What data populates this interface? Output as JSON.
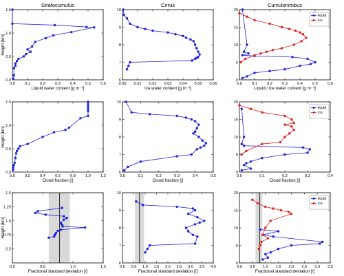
{
  "chart_data": [
    {
      "type": "line",
      "title": "Stratocumulus",
      "xlabel": "Liquid water content [g m⁻³]",
      "ylabel": "Height [km]",
      "xlim": [
        0,
        0.6
      ],
      "ylim": [
        0,
        1.5
      ],
      "xticks": [
        "0.0",
        "0.1",
        "0.2",
        "0.3",
        "0.4",
        "0.5",
        "0.6"
      ],
      "yticks": [
        "0.0",
        "0.5",
        "1.0",
        "1.5"
      ],
      "grid": false,
      "series": [
        {
          "color": "#1f1fe0",
          "x": [
            0,
            0,
            0.28,
            0.49,
            0.54,
            0.39,
            0.27,
            0.22,
            0.15,
            0.13,
            0.1,
            0.12,
            0.09,
            0.075,
            0.04,
            0.03,
            0.02,
            0.02,
            0.01,
            0.01,
            0.005
          ],
          "y": [
            1.5,
            1.2,
            1.17,
            1.13,
            1.12,
            1.02,
            0.95,
            0.89,
            0.81,
            0.71,
            0.65,
            0.6,
            0.55,
            0.5,
            0.45,
            0.4,
            0.35,
            0.3,
            0.25,
            0.1,
            0.02
          ]
        }
      ]
    },
    {
      "type": "line",
      "title": "Cirrus",
      "xlabel": "Ice water content [g m⁻³]",
      "ylabel": "",
      "xlim": [
        0,
        0.06
      ],
      "ylim": [
        6,
        10
      ],
      "xticks": [
        "0.00",
        "0.01",
        "0.02",
        "0.03",
        "0.04",
        "0.05",
        "0.06"
      ],
      "yticks": [
        "6",
        "7",
        "8",
        "9",
        "10"
      ],
      "grid": false,
      "series": [
        {
          "color": "#1f1fe0",
          "x": [
            0.0005,
            0.001,
            0.003,
            0.005,
            0.01,
            0.015,
            0.02,
            0.03,
            0.035,
            0.04,
            0.042,
            0.045,
            0.047,
            0.048,
            0.049,
            0.05,
            0.051,
            0.05,
            0.049,
            0.048,
            0.046,
            0.005,
            0.004,
            0.003
          ],
          "y": [
            10,
            9.7,
            9.5,
            9.2,
            9.0,
            8.9,
            8.8,
            8.7,
            8.6,
            8.5,
            8.4,
            8.3,
            8.2,
            8.0,
            7.8,
            7.6,
            7.45,
            7.3,
            7.25,
            7.2,
            7.1,
            7.0,
            6.8,
            6.6
          ]
        }
      ]
    },
    {
      "type": "line",
      "title": "Cumulonimbus",
      "xlabel": "Liquid / Ice water content [g m⁻³]",
      "ylabel": "",
      "xlim": [
        0,
        0.6
      ],
      "ylim": [
        0,
        20
      ],
      "xticks": [
        "0.0",
        "0.1",
        "0.2",
        "0.3",
        "0.4",
        "0.5",
        "0.6"
      ],
      "yticks": [
        "0",
        "5",
        "10",
        "15",
        "20"
      ],
      "legend": "top-right",
      "grid": false,
      "series": [
        {
          "name": "liquid",
          "color": "#1f1fe0",
          "x": [
            0.02,
            0.05,
            0.03,
            0.06,
            0.02,
            0.1,
            0.35,
            0.45,
            0.5,
            0.47,
            0.4,
            0.3,
            0.2,
            0.1,
            0.05,
            0.02
          ],
          "y": [
            20,
            10,
            8,
            7.5,
            7,
            6.8,
            6.5,
            6.0,
            5.0,
            4.5,
            4.0,
            3.0,
            2.5,
            2.0,
            1.0,
            0.5
          ]
        },
        {
          "name": "ice",
          "color": "#e01f1f",
          "x": [
            0,
            0.05,
            0.1,
            0.2,
            0.28,
            0.33,
            0.37,
            0.4,
            0.42,
            0.44,
            0.41,
            0.36,
            0.28,
            0.22,
            0.18,
            0.14,
            0.1,
            0.04,
            0.01
          ],
          "y": [
            19,
            18,
            17,
            16,
            15,
            14.5,
            14,
            13.5,
            13,
            12,
            11,
            10,
            9,
            8.5,
            8,
            7.5,
            7,
            6,
            5
          ]
        }
      ]
    },
    {
      "type": "line",
      "title": "",
      "xlabel": "Cloud fraction [/]",
      "ylabel": "Height [km]",
      "xlim": [
        0,
        1.2
      ],
      "ylim": [
        0,
        1.5
      ],
      "xticks": [
        "0.0",
        "0.2",
        "0.4",
        "0.6",
        "0.8",
        "1.0",
        "1.2"
      ],
      "yticks": [
        "0.0",
        "0.5",
        "1.0",
        "1.5"
      ],
      "grid": false,
      "series": [
        {
          "color": "#1f1fe0",
          "x": [
            1.0,
            1.0,
            1.0,
            1.0,
            1.0,
            1.0,
            0.9,
            0.75,
            0.7,
            0.55,
            0.4,
            0.2,
            0.1,
            0.08,
            0.06,
            0.05,
            0.04,
            0.03,
            0.02,
            0.01,
            0.01
          ],
          "y": [
            1.5,
            1.45,
            1.4,
            1.35,
            1.3,
            1.2,
            1.15,
            0.95,
            0.9,
            0.85,
            0.75,
            0.6,
            0.55,
            0.5,
            0.45,
            0.4,
            0.3,
            0.2,
            0.15,
            0.1,
            0.05
          ]
        }
      ]
    },
    {
      "type": "line",
      "title": "",
      "xlabel": "Cloud fraction [/]",
      "ylabel": "",
      "xlim": [
        0,
        0.5
      ],
      "ylim": [
        6,
        10
      ],
      "xticks": [
        "0.0",
        "0.1",
        "0.2",
        "0.3",
        "0.4",
        "0.5"
      ],
      "yticks": [
        "6",
        "7",
        "8",
        "9",
        "10"
      ],
      "grid": false,
      "series": [
        {
          "color": "#1f1fe0",
          "x": [
            0.02,
            0.05,
            0.15,
            0.3,
            0.35,
            0.38,
            0.4,
            0.42,
            0.41,
            0.4,
            0.39,
            0.42,
            0.44,
            0.46,
            0.45,
            0.43,
            0.41,
            0.38,
            0.3,
            0.1,
            0.03,
            0.01
          ],
          "y": [
            10,
            9.4,
            9.3,
            9.2,
            9.1,
            9.0,
            8.9,
            8.7,
            8.5,
            8.3,
            8.2,
            8.0,
            7.8,
            7.65,
            7.5,
            7.4,
            7.3,
            7.0,
            6.9,
            6.6,
            6.3,
            6.1
          ]
        }
      ]
    },
    {
      "type": "line",
      "title": "",
      "xlabel": "Cloud fraction [/]",
      "ylabel": "",
      "xlim": [
        0,
        0.4
      ],
      "ylim": [
        0,
        20
      ],
      "xticks": [
        "0.0",
        "0.1",
        "0.2",
        "0.3",
        "0.4"
      ],
      "yticks": [
        "0",
        "5",
        "10",
        "15",
        "20"
      ],
      "legend": "top-right",
      "grid": false,
      "series": [
        {
          "name": "liquid",
          "color": "#1f1fe0",
          "x": [
            0.01,
            0.02,
            0.01,
            0.02,
            0.28,
            0.31,
            0.3,
            0.2,
            0.1,
            0.05,
            0.03,
            0.02,
            0.05,
            0.01
          ],
          "y": [
            18,
            10,
            8.0,
            7.5,
            7.0,
            6.5,
            5.5,
            5.0,
            4.0,
            3.0,
            2.5,
            2.0,
            1.0,
            0.5
          ]
        },
        {
          "name": "ice",
          "color": "#e01f1f",
          "x": [
            0,
            0.05,
            0.1,
            0.2,
            0.23,
            0.24,
            0.2,
            0.23,
            0.24,
            0.22,
            0.2,
            0.18,
            0.1,
            0.03,
            0.01
          ],
          "y": [
            19,
            18,
            17,
            16,
            15,
            14,
            13.5,
            13,
            12,
            11,
            10,
            8.5,
            8,
            6,
            5
          ]
        }
      ]
    },
    {
      "type": "line",
      "title": "",
      "xlabel": "Fractional standard deviation [/]",
      "ylabel": "Height [km]",
      "xlim": [
        0,
        1.5
      ],
      "ylim": [
        0.25,
        1.5
      ],
      "xticks": [
        "0.0",
        "0.5",
        "1.0",
        "1.5"
      ],
      "yticks": [
        "0.5",
        "0.75",
        "1.0",
        "1.25",
        "1.5"
      ],
      "mean_line": 0.78,
      "std_band": [
        0.6,
        0.95
      ],
      "grid": false,
      "series": [
        {
          "color": "#1f1fe0",
          "x": [
            0.82,
            0.42,
            0.38,
            0.55,
            0.85,
            0.9,
            0.85,
            0.8,
            0.82,
            0.83,
            1.2,
            0.8,
            0.75,
            0.72,
            0.7,
            0.69,
            0.6
          ],
          "y": [
            1.23,
            1.17,
            1.14,
            1.11,
            1.08,
            1.05,
            1.02,
            0.96,
            0.93,
            0.9,
            0.88,
            0.84,
            0.82,
            0.78,
            0.75,
            0.72,
            0.7
          ]
        }
      ]
    },
    {
      "type": "line",
      "title": "",
      "xlabel": "Fractional standard deviation [/]",
      "ylabel": "",
      "xlim": [
        0,
        4.0
      ],
      "ylim": [
        6,
        10
      ],
      "xticks": [
        "0.0",
        "0.5",
        "1.0",
        "1.5",
        "2.0",
        "2.5",
        "3.0",
        "3.5",
        "4.0"
      ],
      "yticks": [
        "6",
        "7",
        "8",
        "9",
        "10"
      ],
      "mean_line": 0.75,
      "std_band": [
        0.55,
        0.95
      ],
      "grid": false,
      "series": [
        {
          "color": "#1f1fe0",
          "x": [
            0.6,
            0.9,
            2.4,
            3.1,
            3.2,
            2.9,
            3.3,
            3.6,
            3.4,
            3.2,
            2.8,
            2.9,
            3.1,
            3.3,
            3.2,
            1.2,
            1.1,
            1.0
          ],
          "y": [
            9.5,
            9.3,
            9.2,
            9.1,
            9.0,
            8.8,
            8.6,
            8.4,
            8.3,
            8.2,
            8.0,
            7.8,
            7.6,
            7.5,
            7.1,
            7.0,
            6.8,
            6.6
          ]
        }
      ]
    },
    {
      "type": "line",
      "title": "",
      "xlabel": "Fractional standard deviation [/]",
      "ylabel": "",
      "xlim": [
        0,
        3.5
      ],
      "ylim": [
        0,
        20
      ],
      "xticks": [
        "0.0",
        "0.5",
        "1.0",
        "1.5",
        "2.0",
        "2.5",
        "3.0",
        "3.5"
      ],
      "yticks": [
        "0",
        "5",
        "10",
        "15",
        "20"
      ],
      "legend": "top-right",
      "mean_line": 0.78,
      "std_band": [
        0.62,
        0.88
      ],
      "grid": false,
      "series": [
        {
          "name": "liquid",
          "color": "#1f1fe0",
          "x": [
            0.8,
            1.5,
            0.9,
            1.3,
            3.2,
            3.1,
            2.0,
            1.5,
            1.2,
            1.0,
            1.1,
            0.9
          ],
          "y": [
            9.5,
            9.0,
            8.0,
            7.5,
            6.0,
            5.5,
            5.0,
            4.0,
            3.0,
            2.5,
            1.5,
            1.0
          ]
        },
        {
          "name": "ice",
          "color": "#e01f1f",
          "x": [
            0.5,
            0.7,
            1.0,
            1.3,
            1.6,
            1.9,
            2.0,
            1.2,
            1.0,
            0.9,
            1.1,
            0.85,
            0.8,
            0.75
          ],
          "y": [
            18,
            17,
            16,
            15.5,
            15,
            14.5,
            14,
            12,
            10,
            8,
            7,
            6,
            5,
            4
          ]
        }
      ]
    }
  ]
}
